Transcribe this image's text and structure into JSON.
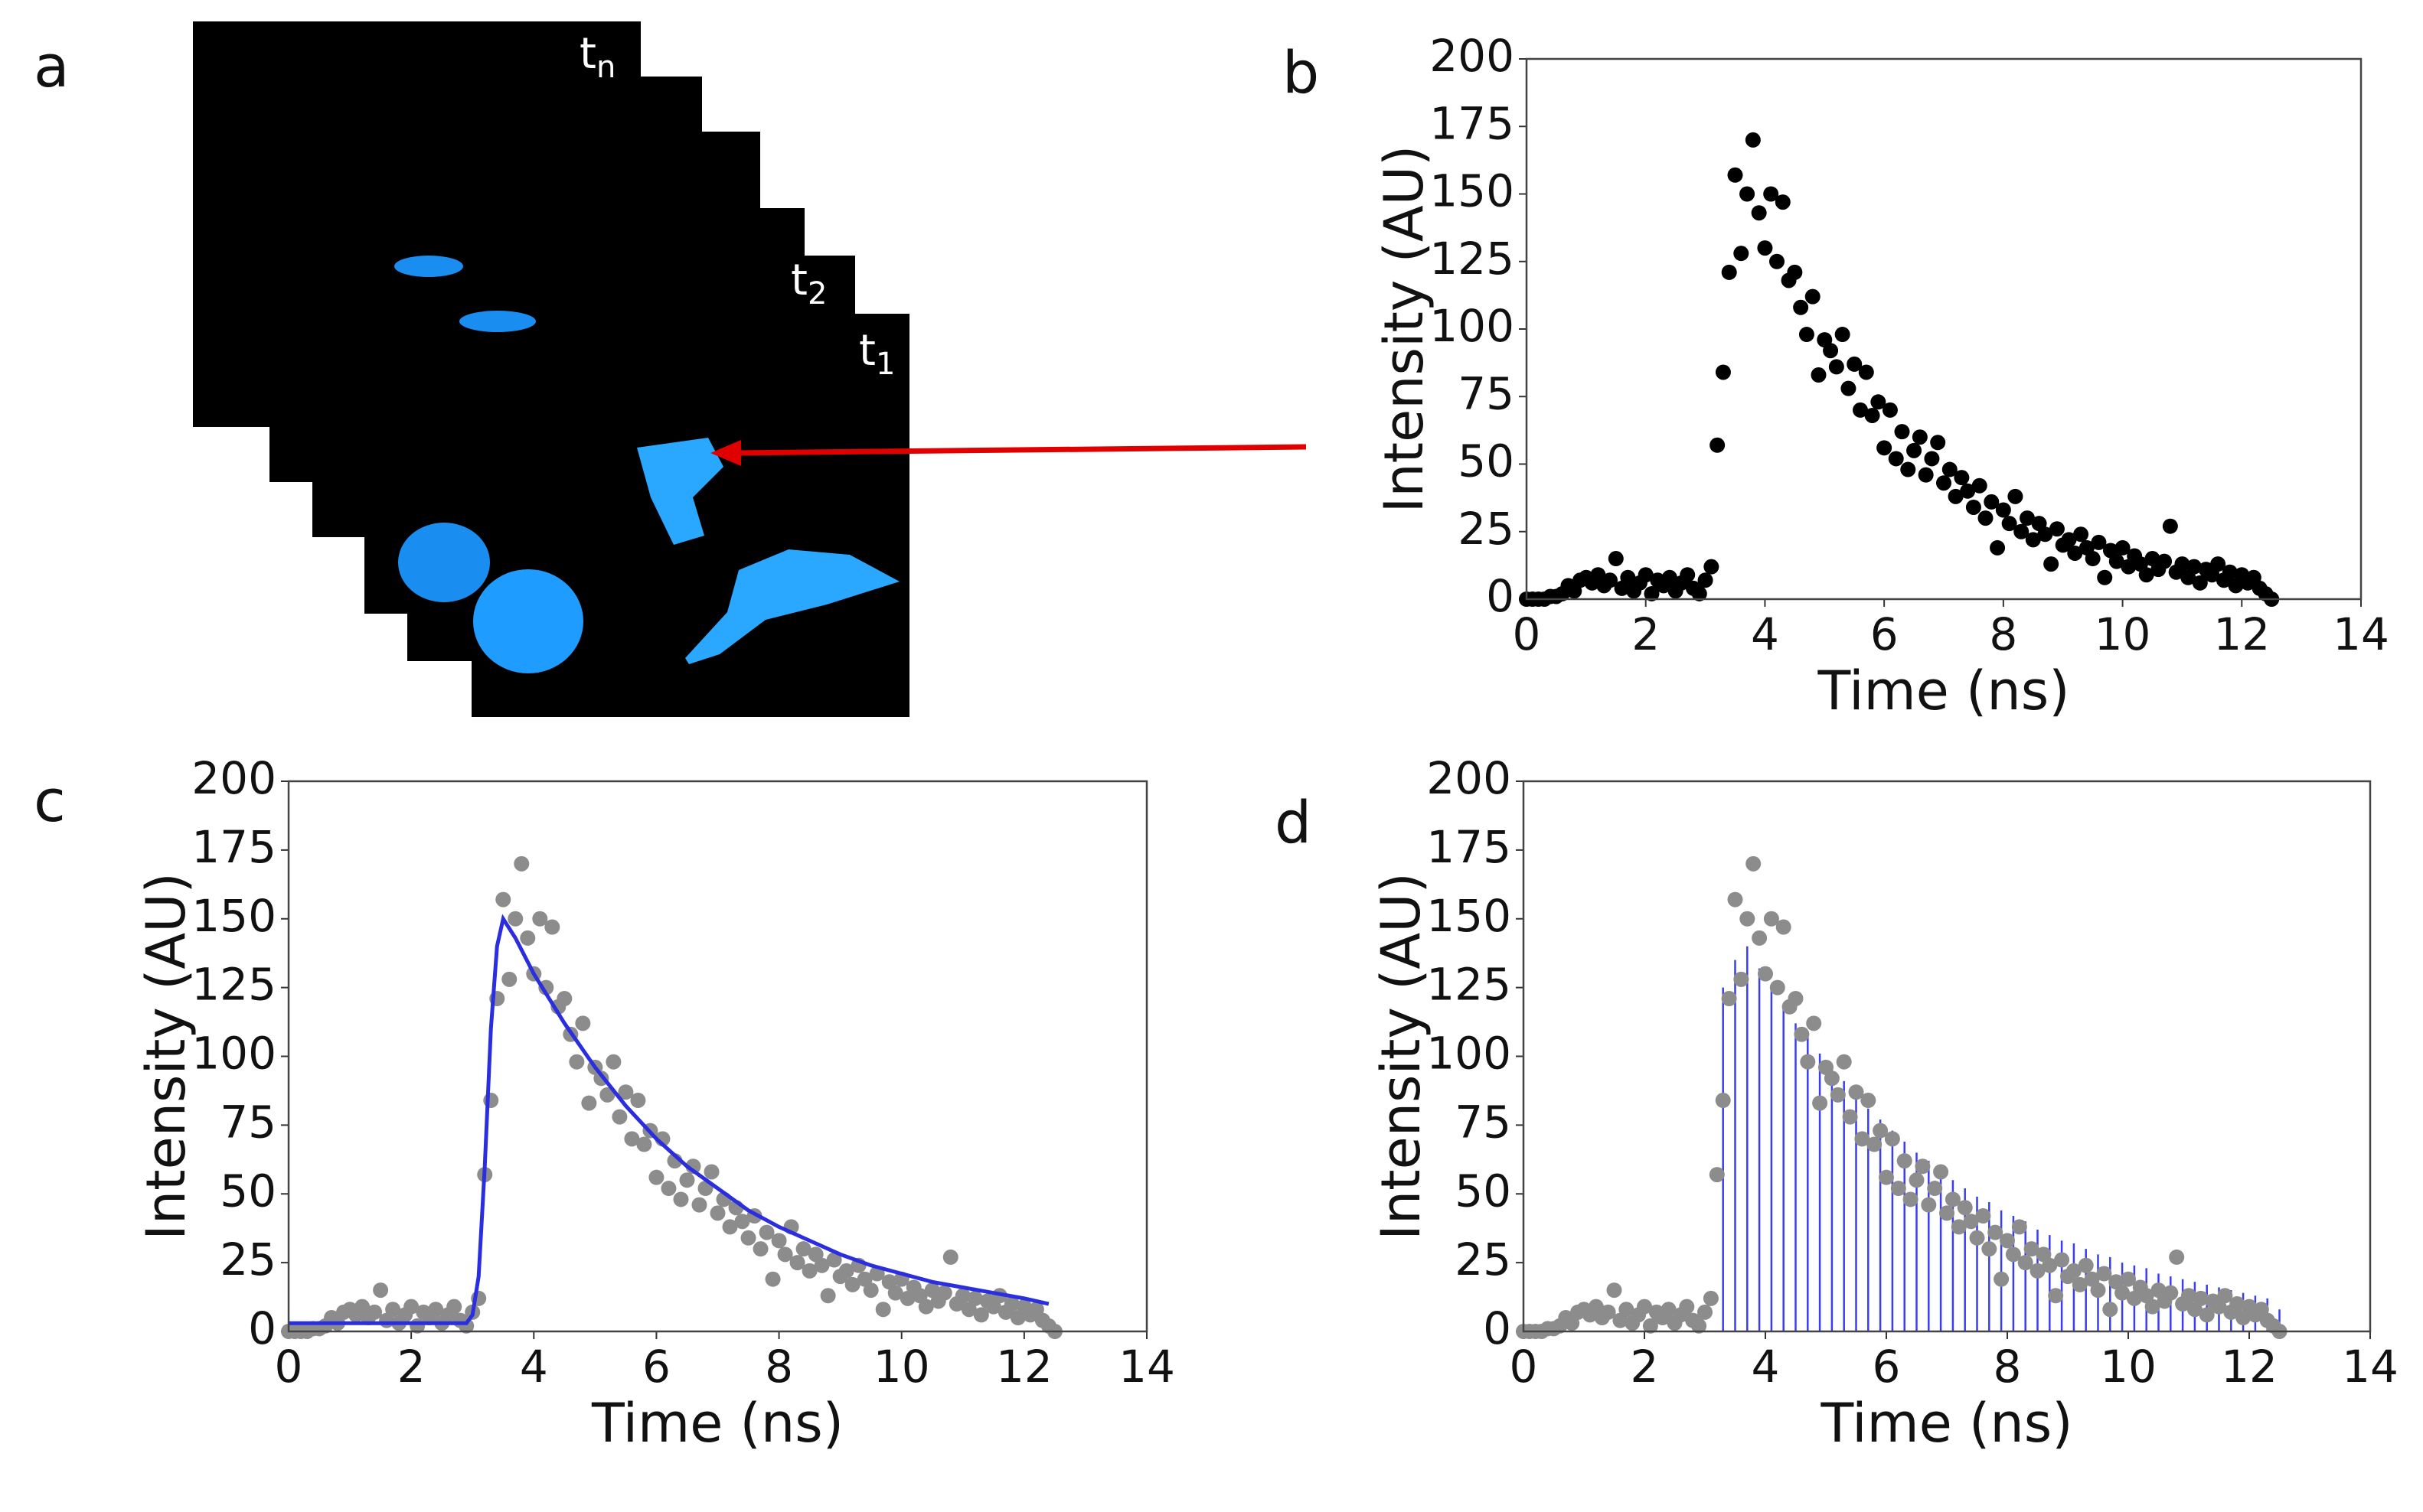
{
  "image_panel": {
    "label": "a",
    "frame_labels": [
      {
        "text": "t",
        "sub": "n"
      },
      {
        "text": "t",
        "sub": "2"
      },
      {
        "text": "t",
        "sub": "1"
      }
    ]
  },
  "chart_data": [
    {
      "type": "scatter",
      "label": "b",
      "xlabel": "Time (ns)",
      "ylabel": "Intensity (AU)",
      "xlim": [
        0,
        14
      ],
      "xticks": [
        0,
        2,
        4,
        6,
        8,
        10,
        12,
        14
      ],
      "ylim": [
        0,
        200
      ],
      "yticks": [
        0,
        25,
        50,
        75,
        100,
        125,
        150,
        175,
        200
      ],
      "series": [
        {
          "type": "scatter",
          "color": "#000000",
          "x": [
            0,
            0.1,
            0.2,
            0.3,
            0.4,
            0.5,
            0.6,
            0.7,
            0.8,
            0.9,
            1.0,
            1.1,
            1.2,
            1.3,
            1.4,
            1.5,
            1.6,
            1.7,
            1.8,
            1.9,
            2.0,
            2.1,
            2.2,
            2.3,
            2.4,
            2.5,
            2.6,
            2.7,
            2.8,
            2.9,
            3.0,
            3.1,
            3.2,
            3.3,
            3.4,
            3.5,
            3.6,
            3.7,
            3.8,
            3.9,
            4.0,
            4.1,
            4.2,
            4.3,
            4.4,
            4.5,
            4.6,
            4.7,
            4.8,
            4.9,
            5.0,
            5.1,
            5.2,
            5.3,
            5.4,
            5.5,
            5.6,
            5.7,
            5.8,
            5.9,
            6.0,
            6.1,
            6.2,
            6.3,
            6.4,
            6.5,
            6.6,
            6.7,
            6.8,
            6.9,
            7.0,
            7.1,
            7.2,
            7.3,
            7.4,
            7.5,
            7.6,
            7.7,
            7.8,
            7.9,
            8.0,
            8.1,
            8.2,
            8.3,
            8.4,
            8.5,
            8.6,
            8.7,
            8.8,
            8.9,
            9.0,
            9.1,
            9.2,
            9.3,
            9.4,
            9.5,
            9.6,
            9.7,
            9.8,
            9.9,
            10.0,
            10.1,
            10.2,
            10.3,
            10.4,
            10.5,
            10.6,
            10.7,
            10.8,
            10.9,
            11.0,
            11.1,
            11.2,
            11.3,
            11.4,
            11.5,
            11.6,
            11.7,
            11.8,
            11.9,
            12.0,
            12.1,
            12.2,
            12.3,
            12.4,
            12.5
          ],
          "values": [
            0,
            0,
            0,
            0,
            1,
            1,
            2,
            5,
            3,
            7,
            8,
            6,
            9,
            5,
            7,
            15,
            4,
            8,
            3,
            6,
            9,
            2,
            7,
            5,
            8,
            3,
            6,
            9,
            4,
            2,
            7,
            12,
            57,
            84,
            121,
            157,
            128,
            150,
            170,
            143,
            130,
            150,
            125,
            147,
            118,
            121,
            108,
            98,
            112,
            83,
            96,
            92,
            86,
            98,
            78,
            87,
            70,
            84,
            68,
            73,
            56,
            70,
            52,
            62,
            48,
            55,
            60,
            46,
            52,
            58,
            43,
            48,
            38,
            45,
            40,
            34,
            42,
            30,
            36,
            19,
            33,
            28,
            38,
            25,
            30,
            22,
            28,
            24,
            13,
            26,
            20,
            22,
            17,
            24,
            19,
            15,
            21,
            8,
            18,
            14,
            19,
            12,
            16,
            13,
            9,
            15,
            11,
            14,
            27,
            10,
            13,
            8,
            12,
            6,
            11,
            9,
            13,
            7,
            10,
            5,
            9,
            6,
            8,
            4,
            2,
            0
          ]
        }
      ]
    },
    {
      "type": "scatter",
      "label": "c",
      "xlabel": "Time (ns)",
      "ylabel": "Intensity (AU)",
      "xlim": [
        0,
        14
      ],
      "xticks": [
        0,
        2,
        4,
        6,
        8,
        10,
        12,
        14
      ],
      "ylim": [
        0,
        200
      ],
      "yticks": [
        0,
        25,
        50,
        75,
        100,
        125,
        150,
        175,
        200
      ],
      "series": [
        {
          "type": "scatter",
          "color": "#8c8c8c",
          "x": [
            0,
            0.1,
            0.2,
            0.3,
            0.4,
            0.5,
            0.6,
            0.7,
            0.8,
            0.9,
            1.0,
            1.1,
            1.2,
            1.3,
            1.4,
            1.5,
            1.6,
            1.7,
            1.8,
            1.9,
            2.0,
            2.1,
            2.2,
            2.3,
            2.4,
            2.5,
            2.6,
            2.7,
            2.8,
            2.9,
            3.0,
            3.1,
            3.2,
            3.3,
            3.4,
            3.5,
            3.6,
            3.7,
            3.8,
            3.9,
            4.0,
            4.1,
            4.2,
            4.3,
            4.4,
            4.5,
            4.6,
            4.7,
            4.8,
            4.9,
            5.0,
            5.1,
            5.2,
            5.3,
            5.4,
            5.5,
            5.6,
            5.7,
            5.8,
            5.9,
            6.0,
            6.1,
            6.2,
            6.3,
            6.4,
            6.5,
            6.6,
            6.7,
            6.8,
            6.9,
            7.0,
            7.1,
            7.2,
            7.3,
            7.4,
            7.5,
            7.6,
            7.7,
            7.8,
            7.9,
            8.0,
            8.1,
            8.2,
            8.3,
            8.4,
            8.5,
            8.6,
            8.7,
            8.8,
            8.9,
            9.0,
            9.1,
            9.2,
            9.3,
            9.4,
            9.5,
            9.6,
            9.7,
            9.8,
            9.9,
            10.0,
            10.1,
            10.2,
            10.3,
            10.4,
            10.5,
            10.6,
            10.7,
            10.8,
            10.9,
            11.0,
            11.1,
            11.2,
            11.3,
            11.4,
            11.5,
            11.6,
            11.7,
            11.8,
            11.9,
            12.0,
            12.1,
            12.2,
            12.3,
            12.4,
            12.5
          ],
          "values": [
            0,
            0,
            0,
            0,
            1,
            1,
            2,
            5,
            3,
            7,
            8,
            6,
            9,
            5,
            7,
            15,
            4,
            8,
            3,
            6,
            9,
            2,
            7,
            5,
            8,
            3,
            6,
            9,
            4,
            2,
            7,
            12,
            57,
            84,
            121,
            157,
            128,
            150,
            170,
            143,
            130,
            150,
            125,
            147,
            118,
            121,
            108,
            98,
            112,
            83,
            96,
            92,
            86,
            98,
            78,
            87,
            70,
            84,
            68,
            73,
            56,
            70,
            52,
            62,
            48,
            55,
            60,
            46,
            52,
            58,
            43,
            48,
            38,
            45,
            40,
            34,
            42,
            30,
            36,
            19,
            33,
            28,
            38,
            25,
            30,
            22,
            28,
            24,
            13,
            26,
            20,
            22,
            17,
            24,
            19,
            15,
            21,
            8,
            18,
            14,
            19,
            12,
            16,
            13,
            9,
            15,
            11,
            14,
            27,
            10,
            13,
            8,
            12,
            6,
            11,
            9,
            13,
            7,
            10,
            5,
            9,
            6,
            8,
            4,
            2,
            0
          ]
        },
        {
          "type": "line",
          "color": "#2a2ee0",
          "x": [
            0,
            2.9,
            3.0,
            3.1,
            3.2,
            3.3,
            3.4,
            3.5,
            3.7,
            4,
            4.5,
            5,
            5.5,
            6,
            6.5,
            7,
            7.5,
            8,
            8.5,
            9,
            9.5,
            10,
            10.5,
            11,
            11.5,
            12,
            12.4
          ],
          "values": [
            3,
            3,
            6,
            20,
            60,
            110,
            140,
            150,
            143,
            130,
            112,
            96,
            82,
            70,
            60,
            52,
            44,
            38,
            33,
            28,
            24,
            21,
            18,
            16,
            14,
            12,
            10
          ]
        }
      ]
    },
    {
      "type": "scatter",
      "label": "d",
      "xlabel": "Time (ns)",
      "ylabel": "Intensity (AU)",
      "xlim": [
        0,
        14
      ],
      "xticks": [
        0,
        2,
        4,
        6,
        8,
        10,
        12,
        14
      ],
      "ylim": [
        0,
        200
      ],
      "yticks": [
        0,
        25,
        50,
        75,
        100,
        125,
        150,
        175,
        200
      ],
      "series": [
        {
          "type": "bar",
          "color": "#3a3ef0",
          "x": [
            3.3,
            3.5,
            3.7,
            3.9,
            4.1,
            4.3,
            4.5,
            4.7,
            4.9,
            5.1,
            5.3,
            5.5,
            5.7,
            5.9,
            6.1,
            6.3,
            6.5,
            6.7,
            6.9,
            7.1,
            7.3,
            7.5,
            7.7,
            7.9,
            8.1,
            8.3,
            8.5,
            8.7,
            8.9,
            9.1,
            9.3,
            9.5,
            9.7,
            9.9,
            10.1,
            10.3,
            10.5,
            10.7,
            10.9,
            11.1,
            11.3,
            11.5,
            11.7,
            11.9,
            12.1,
            12.3,
            12.5
          ],
          "values": [
            125,
            135,
            140,
            132,
            125,
            118,
            112,
            107,
            101,
            96,
            91,
            86,
            81,
            77,
            73,
            69,
            65,
            62,
            58,
            55,
            52,
            49,
            47,
            44,
            42,
            40,
            37,
            35,
            33,
            32,
            30,
            28,
            27,
            25,
            24,
            23,
            21,
            20,
            19,
            18,
            17,
            16,
            15,
            14,
            13,
            12,
            8
          ]
        },
        {
          "type": "scatter",
          "color": "#8c8c8c",
          "x": [
            0,
            0.1,
            0.2,
            0.3,
            0.4,
            0.5,
            0.6,
            0.7,
            0.8,
            0.9,
            1.0,
            1.1,
            1.2,
            1.3,
            1.4,
            1.5,
            1.6,
            1.7,
            1.8,
            1.9,
            2.0,
            2.1,
            2.2,
            2.3,
            2.4,
            2.5,
            2.6,
            2.7,
            2.8,
            2.9,
            3.0,
            3.1,
            3.2,
            3.3,
            3.4,
            3.5,
            3.6,
            3.7,
            3.8,
            3.9,
            4.0,
            4.1,
            4.2,
            4.3,
            4.4,
            4.5,
            4.6,
            4.7,
            4.8,
            4.9,
            5.0,
            5.1,
            5.2,
            5.3,
            5.4,
            5.5,
            5.6,
            5.7,
            5.8,
            5.9,
            6.0,
            6.1,
            6.2,
            6.3,
            6.4,
            6.5,
            6.6,
            6.7,
            6.8,
            6.9,
            7.0,
            7.1,
            7.2,
            7.3,
            7.4,
            7.5,
            7.6,
            7.7,
            7.8,
            7.9,
            8.0,
            8.1,
            8.2,
            8.3,
            8.4,
            8.5,
            8.6,
            8.7,
            8.8,
            8.9,
            9.0,
            9.1,
            9.2,
            9.3,
            9.4,
            9.5,
            9.6,
            9.7,
            9.8,
            9.9,
            10.0,
            10.1,
            10.2,
            10.3,
            10.4,
            10.5,
            10.6,
            10.7,
            10.8,
            10.9,
            11.0,
            11.1,
            11.2,
            11.3,
            11.4,
            11.5,
            11.6,
            11.7,
            11.8,
            11.9,
            12.0,
            12.1,
            12.2,
            12.3,
            12.4,
            12.5
          ],
          "values": [
            0,
            0,
            0,
            0,
            1,
            1,
            2,
            5,
            3,
            7,
            8,
            6,
            9,
            5,
            7,
            15,
            4,
            8,
            3,
            6,
            9,
            2,
            7,
            5,
            8,
            3,
            6,
            9,
            4,
            2,
            7,
            12,
            57,
            84,
            121,
            157,
            128,
            150,
            170,
            143,
            130,
            150,
            125,
            147,
            118,
            121,
            108,
            98,
            112,
            83,
            96,
            92,
            86,
            98,
            78,
            87,
            70,
            84,
            68,
            73,
            56,
            70,
            52,
            62,
            48,
            55,
            60,
            46,
            52,
            58,
            43,
            48,
            38,
            45,
            40,
            34,
            42,
            30,
            36,
            19,
            33,
            28,
            38,
            25,
            30,
            22,
            28,
            24,
            13,
            26,
            20,
            22,
            17,
            24,
            19,
            15,
            21,
            8,
            18,
            14,
            19,
            12,
            16,
            13,
            9,
            15,
            11,
            14,
            27,
            10,
            13,
            8,
            12,
            6,
            11,
            9,
            13,
            7,
            10,
            5,
            9,
            6,
            8,
            4,
            2,
            0
          ]
        }
      ]
    }
  ]
}
